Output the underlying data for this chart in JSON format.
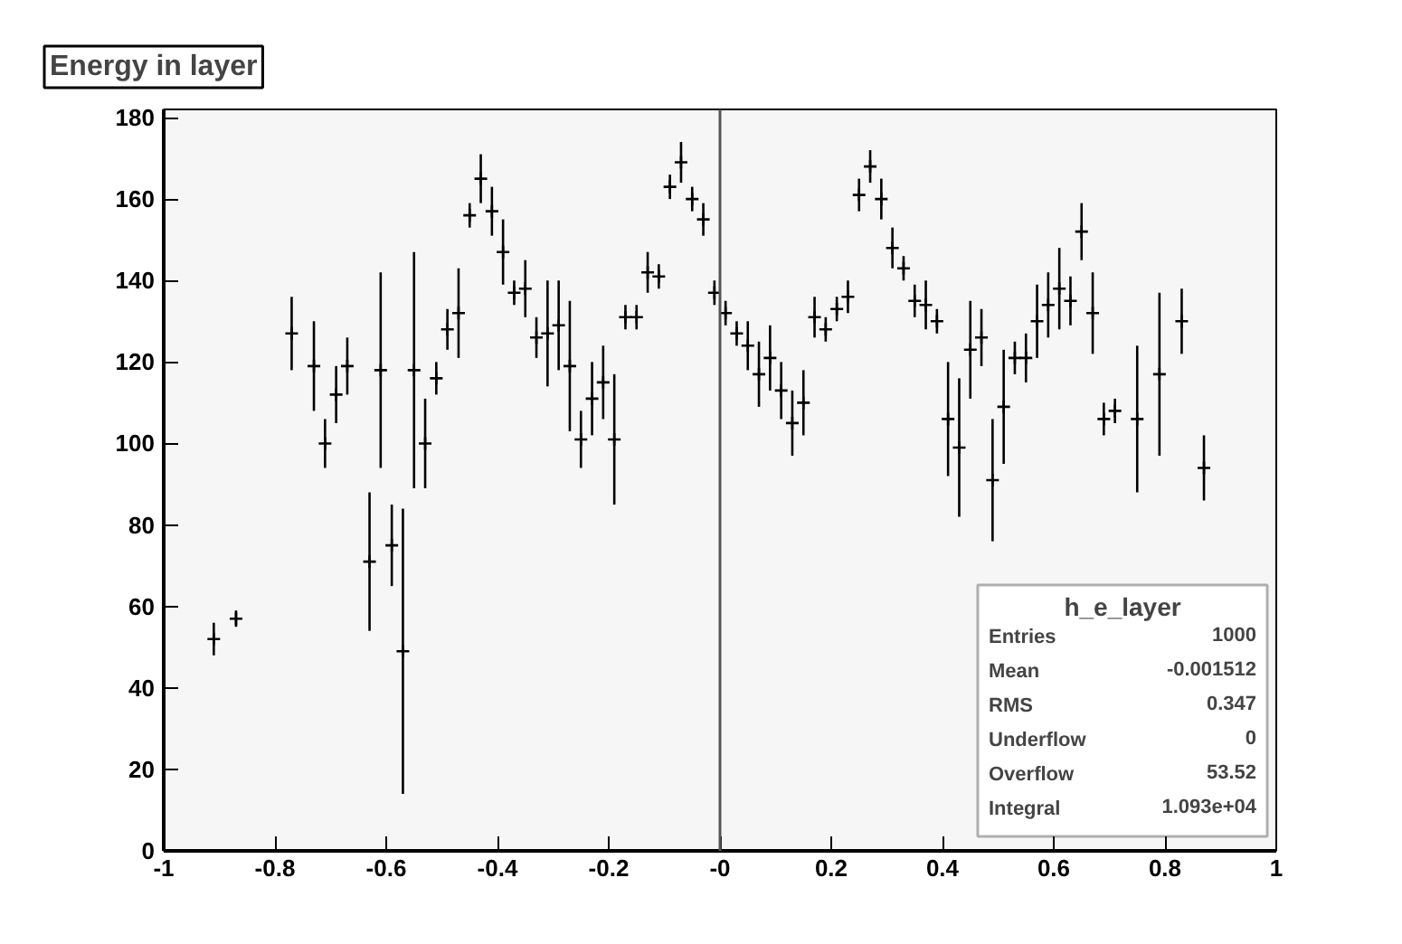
{
  "chart_data": {
    "type": "scatter",
    "title": "Energy in layer",
    "marker": "cross",
    "grid": false,
    "x": [
      -0.91,
      -0.87,
      -0.77,
      -0.73,
      -0.71,
      -0.69,
      -0.67,
      -0.63,
      -0.61,
      -0.59,
      -0.57,
      -0.55,
      -0.53,
      -0.51,
      -0.49,
      -0.47,
      -0.45,
      -0.43,
      -0.41,
      -0.39,
      -0.37,
      -0.35,
      -0.33,
      -0.31,
      -0.29,
      -0.27,
      -0.25,
      -0.23,
      -0.21,
      -0.19,
      -0.17,
      -0.15,
      -0.13,
      -0.11,
      -0.09,
      -0.07,
      -0.05,
      -0.03,
      -0.01,
      0.01,
      0.03,
      0.05,
      0.07,
      0.09,
      0.11,
      0.13,
      0.15,
      0.17,
      0.19,
      0.21,
      0.23,
      0.25,
      0.27,
      0.29,
      0.31,
      0.33,
      0.35,
      0.37,
      0.39,
      0.41,
      0.43,
      0.45,
      0.47,
      0.49,
      0.51,
      0.53,
      0.55,
      0.57,
      0.59,
      0.61,
      0.63,
      0.65,
      0.67,
      0.69,
      0.71,
      0.75,
      0.79,
      0.83,
      0.87
    ],
    "series": [
      {
        "color": "#000000",
        "values": [
          52,
          57,
          127,
          119,
          100,
          112,
          119,
          71,
          118,
          75,
          49,
          118,
          100,
          116,
          128,
          132,
          156,
          165,
          157,
          147,
          137,
          138,
          126,
          127,
          129,
          119,
          101,
          111,
          115,
          101,
          131,
          131,
          142,
          141,
          163,
          169,
          160,
          155,
          137,
          132,
          127,
          124,
          117,
          121,
          113,
          105,
          110,
          131,
          128,
          133,
          136,
          161,
          168,
          160,
          148,
          143,
          135,
          134,
          130,
          106,
          99,
          123,
          126,
          91,
          109,
          121,
          121,
          130,
          134,
          138,
          135,
          152,
          132,
          106,
          108,
          106,
          117,
          130,
          94
        ],
        "errors": [
          4,
          2,
          9,
          11,
          6,
          7,
          7,
          17,
          24,
          10,
          35,
          29,
          11,
          4,
          5,
          11,
          3,
          6,
          6,
          8,
          3,
          7,
          5,
          13,
          11,
          16,
          7,
          9,
          9,
          16,
          3,
          3,
          5,
          3,
          3,
          5,
          3,
          4,
          3,
          3,
          3,
          6,
          8,
          8,
          7,
          8,
          8,
          5,
          3,
          3,
          4,
          4,
          4,
          5,
          5,
          3,
          4,
          6,
          3,
          14,
          17,
          12,
          7,
          15,
          14,
          4,
          6,
          9,
          8,
          10,
          6,
          7,
          10,
          4,
          3,
          18,
          20,
          8,
          8
        ]
      }
    ],
    "xlim": [
      -1,
      1
    ],
    "ylim": [
      0,
      182
    ],
    "xticks": [
      -1,
      -0.8,
      -0.6,
      -0.4,
      -0.2,
      {
        "value": 0,
        "label": "-0"
      },
      0.2,
      0.4,
      0.6,
      0.8,
      1
    ],
    "yticks": [
      0,
      20,
      40,
      60,
      80,
      100,
      120,
      140,
      160,
      180
    ],
    "ref_lines": [
      {
        "axis": "x",
        "value": 0,
        "label": null
      }
    ],
    "annotations": [
      "h_e_layer",
      "Entries 1000",
      "Mean -0.001512",
      "RMS 0.347",
      "Underflow 0",
      "Overflow 53.52",
      "Integral 1.093e+04"
    ]
  }
}
